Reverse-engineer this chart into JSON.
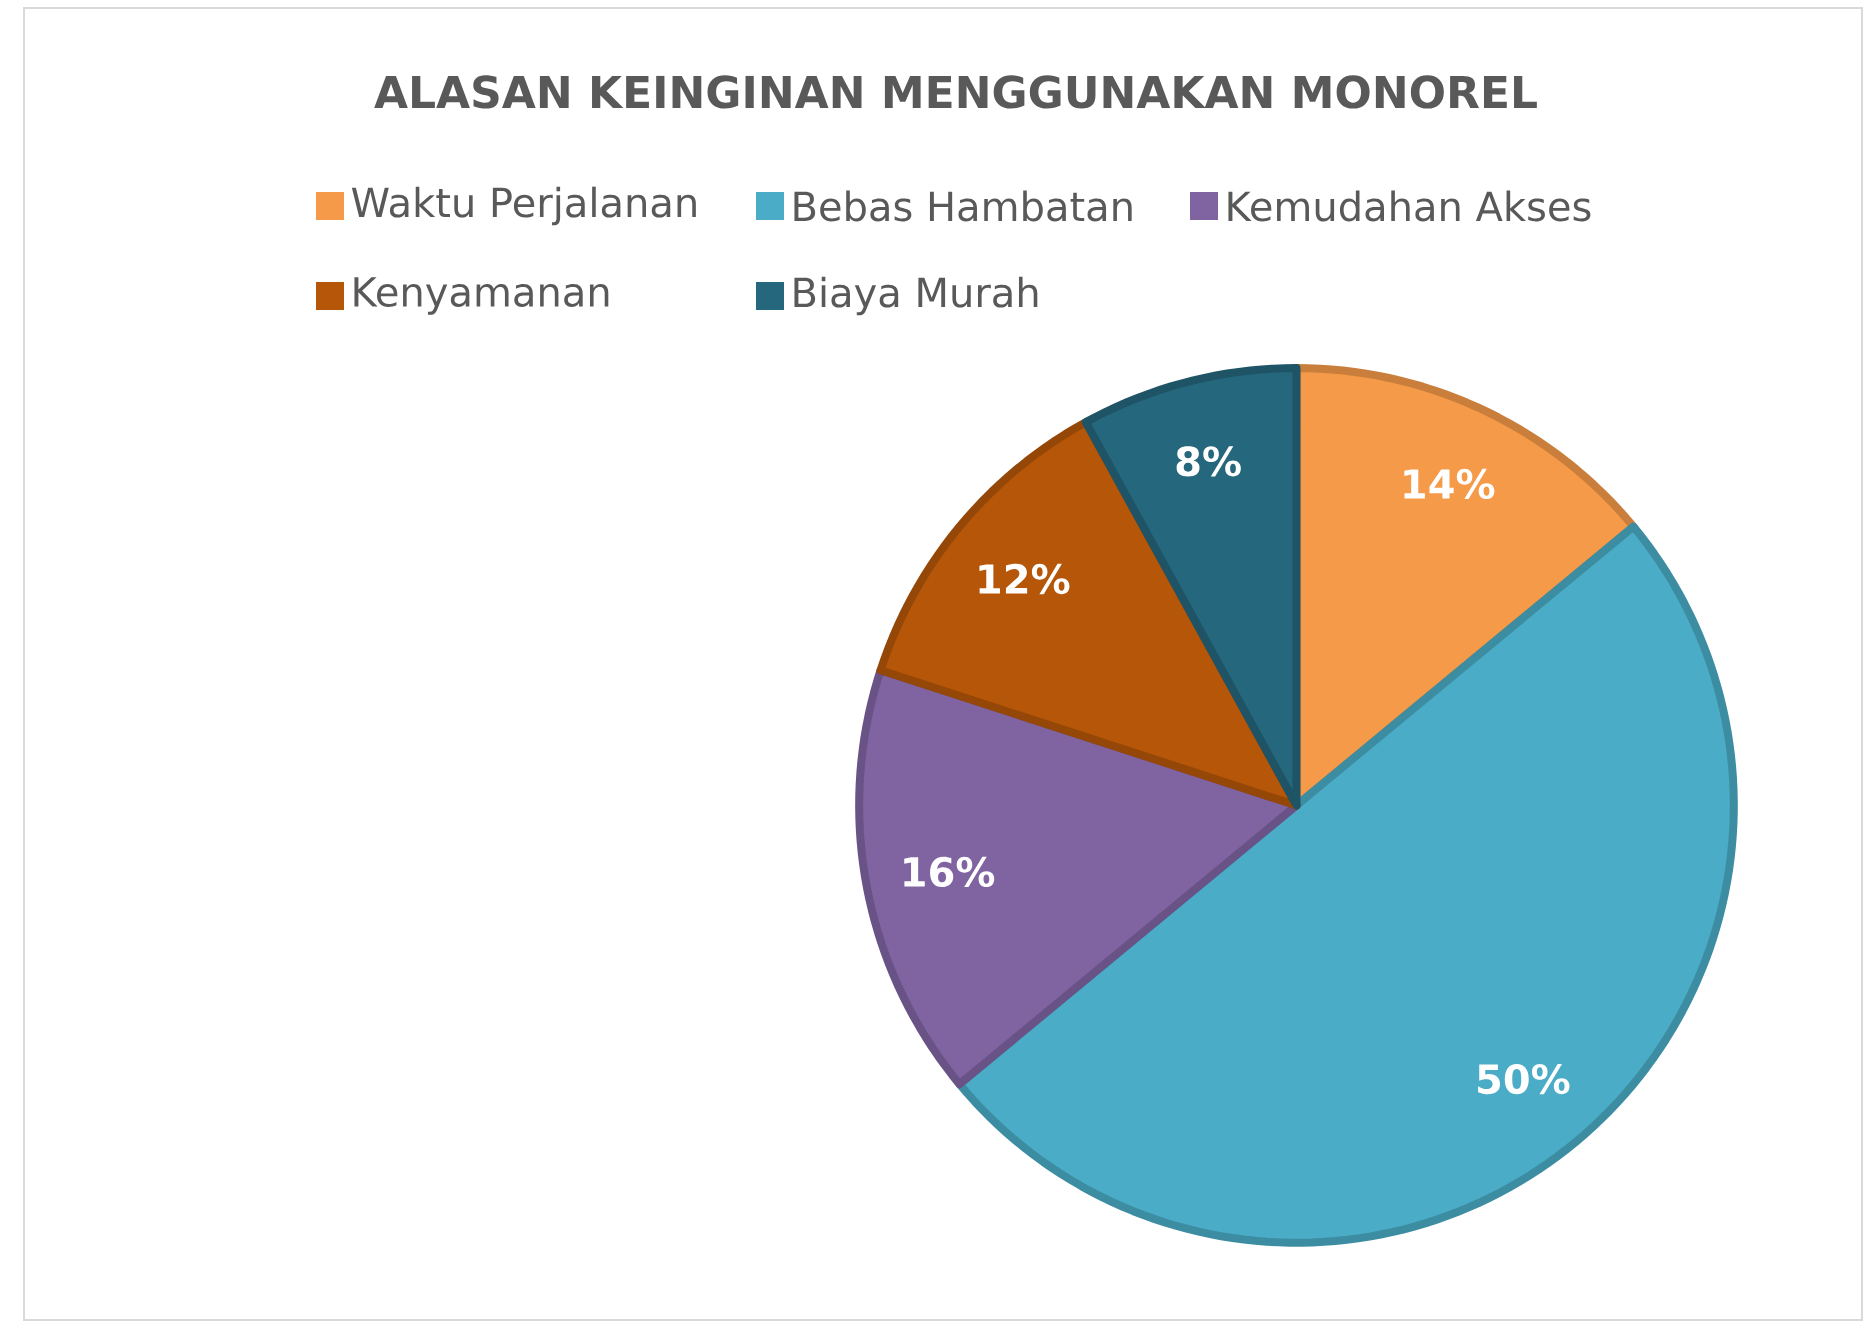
{
  "chart_data": {
    "type": "pie",
    "title": "ALASAN KEINGINAN MENGGUNAKAN MONOREL",
    "categories": [
      "Waktu Perjalanan",
      "Bebas Hambatan",
      "Kemudahan Akses",
      "Kenyamanan",
      "Biaya Murah"
    ],
    "values": [
      14,
      50,
      16,
      12,
      8
    ],
    "value_labels": [
      "14%",
      "50%",
      "16%",
      "12%",
      "8%"
    ],
    "colors": [
      "#f59a48",
      "#4aacc6",
      "#8064a2",
      "#b65609",
      "#25677c"
    ],
    "legend": "top"
  }
}
